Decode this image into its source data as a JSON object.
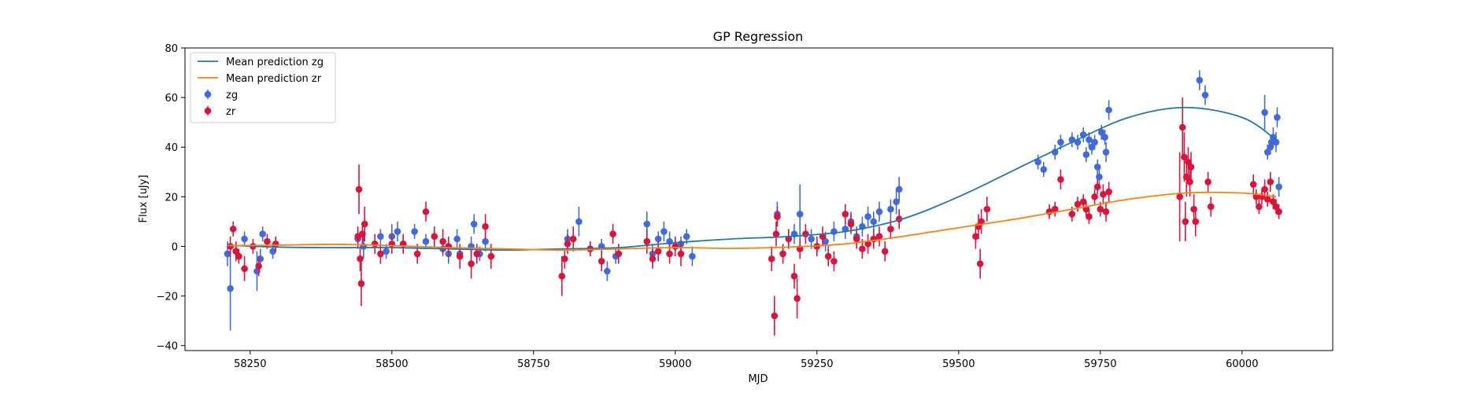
{
  "chart_data": {
    "type": "scatter",
    "title": "GP Regression",
    "xlabel": "MJD",
    "ylabel": "Flux [uJy]",
    "xlim": [
      58135,
      60160
    ],
    "ylim": [
      -42,
      80
    ],
    "xticks": [
      58250,
      58500,
      58750,
      59000,
      59250,
      59500,
      59750,
      60000
    ],
    "xtick_labels": [
      "58250",
      "58500",
      "58750",
      "59000",
      "59250",
      "59500",
      "59750",
      "60000"
    ],
    "yticks": [
      -40,
      -20,
      0,
      20,
      40,
      60,
      80
    ],
    "ytick_labels": [
      "−40",
      "−20",
      "0",
      "20",
      "40",
      "60",
      "80"
    ],
    "legend_position": "top-left",
    "grid": false,
    "lines": [
      {
        "name": "Mean prediction zg",
        "color": "#1f77b4",
        "x": [
          58210,
          58300,
          58400,
          58500,
          58600,
          58700,
          58800,
          58900,
          59000,
          59100,
          59200,
          59300,
          59400,
          59500,
          59600,
          59700,
          59800,
          59900,
          60000,
          60060
        ],
        "y": [
          0.5,
          -0.3,
          -0.5,
          -0.5,
          -1.0,
          -1.5,
          -1.0,
          -0.5,
          1.5,
          3.0,
          4.0,
          6.0,
          11.0,
          20.0,
          31.0,
          42.0,
          52.0,
          56.0,
          52.0,
          43.0
        ]
      },
      {
        "name": "Mean prediction zr",
        "color": "#ff7f0e",
        "x": [
          58210,
          58300,
          58400,
          58500,
          58600,
          58700,
          58800,
          58900,
          59000,
          59100,
          59200,
          59300,
          59400,
          59500,
          59600,
          59700,
          59800,
          59900,
          60000,
          60060
        ],
        "y": [
          0.3,
          0.5,
          0.8,
          0.3,
          -0.5,
          -1.0,
          -1.5,
          -1.0,
          -0.5,
          -0.8,
          -0.3,
          1.0,
          4.0,
          7.5,
          11.0,
          15.0,
          19.0,
          21.5,
          21.5,
          20.0
        ]
      }
    ],
    "series": [
      {
        "name": "zg",
        "color": "#4169e1",
        "points": [
          [
            58210,
            -3,
            5
          ],
          [
            58215,
            -17,
            17
          ],
          [
            58225,
            -2,
            3
          ],
          [
            58240,
            3,
            3
          ],
          [
            58262,
            -10,
            8
          ],
          [
            58268,
            -5,
            4
          ],
          [
            58272,
            5,
            3
          ],
          [
            58290,
            -2,
            3
          ],
          [
            58440,
            3,
            4
          ],
          [
            58450,
            0,
            5
          ],
          [
            58480,
            4,
            3
          ],
          [
            58490,
            -2,
            3
          ],
          [
            58500,
            4,
            5
          ],
          [
            58510,
            6,
            4
          ],
          [
            58520,
            1,
            3
          ],
          [
            58540,
            6,
            3
          ],
          [
            58560,
            2,
            3
          ],
          [
            58590,
            -1,
            3
          ],
          [
            58600,
            -3,
            4
          ],
          [
            58615,
            3,
            4
          ],
          [
            58620,
            -3,
            3
          ],
          [
            58640,
            0,
            4
          ],
          [
            58645,
            9,
            4
          ],
          [
            58655,
            -3,
            3
          ],
          [
            58665,
            2,
            4
          ],
          [
            58810,
            3,
            4
          ],
          [
            58830,
            10,
            6
          ],
          [
            58850,
            -1,
            3
          ],
          [
            58870,
            0,
            3
          ],
          [
            58880,
            -10,
            4
          ],
          [
            58895,
            -4,
            3
          ],
          [
            58950,
            9,
            5
          ],
          [
            58960,
            -3,
            4
          ],
          [
            58970,
            3,
            3
          ],
          [
            58980,
            6,
            4
          ],
          [
            58990,
            2,
            4
          ],
          [
            59010,
            1,
            3
          ],
          [
            59020,
            4,
            3
          ],
          [
            59030,
            -4,
            4
          ],
          [
            59180,
            13,
            5
          ],
          [
            59210,
            5,
            4
          ],
          [
            59220,
            13,
            12
          ],
          [
            59240,
            3,
            4
          ],
          [
            59265,
            2,
            4
          ],
          [
            59280,
            6,
            4
          ],
          [
            59300,
            7,
            4
          ],
          [
            59310,
            10,
            4
          ],
          [
            59320,
            4,
            4
          ],
          [
            59330,
            8,
            4
          ],
          [
            59340,
            12,
            4
          ],
          [
            59350,
            10,
            4
          ],
          [
            59360,
            14,
            4
          ],
          [
            59380,
            15,
            4
          ],
          [
            59390,
            18,
            5
          ],
          [
            59395,
            23,
            5
          ],
          [
            59640,
            34,
            3
          ],
          [
            59650,
            31,
            3
          ],
          [
            59670,
            38,
            3
          ],
          [
            59680,
            42,
            3
          ],
          [
            59700,
            43,
            3
          ],
          [
            59710,
            42,
            3
          ],
          [
            59720,
            45,
            3
          ],
          [
            59725,
            37,
            3
          ],
          [
            59730,
            43,
            3
          ],
          [
            59735,
            40,
            3
          ],
          [
            59740,
            42,
            3
          ],
          [
            59745,
            32,
            3
          ],
          [
            59748,
            28,
            3
          ],
          [
            59752,
            46,
            3
          ],
          [
            59758,
            44,
            3
          ],
          [
            59760,
            38,
            4
          ],
          [
            59765,
            55,
            4
          ],
          [
            59925,
            67,
            4
          ],
          [
            59935,
            61,
            4
          ],
          [
            60040,
            54,
            7
          ],
          [
            60045,
            38,
            3
          ],
          [
            60050,
            40,
            3
          ],
          [
            60052,
            42,
            3
          ],
          [
            60055,
            44,
            4
          ],
          [
            60060,
            42,
            4
          ],
          [
            60062,
            52,
            4
          ],
          [
            60065,
            24,
            4
          ]
        ]
      },
      {
        "name": "zr",
        "color": "#dc143c",
        "points": [
          [
            58215,
            0,
            4
          ],
          [
            58220,
            7,
            3
          ],
          [
            58225,
            -2,
            4
          ],
          [
            58230,
            -4,
            3
          ],
          [
            58240,
            -9,
            5
          ],
          [
            58255,
            0,
            3
          ],
          [
            58265,
            -8,
            4
          ],
          [
            58280,
            2,
            3
          ],
          [
            58295,
            1,
            3
          ],
          [
            58440,
            4,
            4
          ],
          [
            58442,
            23,
            10
          ],
          [
            58444,
            -5,
            5
          ],
          [
            58446,
            -15,
            9
          ],
          [
            58448,
            5,
            4
          ],
          [
            58452,
            9,
            7
          ],
          [
            58470,
            1,
            4
          ],
          [
            58480,
            -3,
            4
          ],
          [
            58500,
            1,
            4
          ],
          [
            58520,
            1,
            4
          ],
          [
            58545,
            -3,
            4
          ],
          [
            58560,
            14,
            4
          ],
          [
            58575,
            4,
            4
          ],
          [
            58590,
            2,
            5
          ],
          [
            58600,
            0,
            4
          ],
          [
            58620,
            -4,
            5
          ],
          [
            58640,
            -7,
            6
          ],
          [
            58650,
            -3,
            4
          ],
          [
            58665,
            8,
            5
          ],
          [
            58675,
            -4,
            5
          ],
          [
            58800,
            -12,
            8
          ],
          [
            58805,
            -5,
            4
          ],
          [
            58810,
            1,
            4
          ],
          [
            58820,
            3,
            5
          ],
          [
            58850,
            -1,
            3
          ],
          [
            58870,
            -6,
            4
          ],
          [
            58890,
            5,
            4
          ],
          [
            58900,
            -3,
            4
          ],
          [
            58950,
            2,
            5
          ],
          [
            58960,
            -5,
            4
          ],
          [
            58970,
            -2,
            4
          ],
          [
            58990,
            -3,
            4
          ],
          [
            59000,
            0,
            4
          ],
          [
            59010,
            -3,
            5
          ],
          [
            59170,
            -5,
            5
          ],
          [
            59175,
            -28,
            8
          ],
          [
            59178,
            5,
            5
          ],
          [
            59180,
            12,
            4
          ],
          [
            59190,
            -3,
            4
          ],
          [
            59200,
            3,
            4
          ],
          [
            59210,
            -12,
            5
          ],
          [
            59215,
            -21,
            8
          ],
          [
            59220,
            -1,
            4
          ],
          [
            59230,
            5,
            4
          ],
          [
            59250,
            0,
            4
          ],
          [
            59260,
            4,
            4
          ],
          [
            59270,
            -4,
            4
          ],
          [
            59280,
            -6,
            4
          ],
          [
            59300,
            13,
            4
          ],
          [
            59310,
            9,
            4
          ],
          [
            59320,
            3,
            4
          ],
          [
            59330,
            -1,
            4
          ],
          [
            59340,
            1,
            4
          ],
          [
            59350,
            3,
            4
          ],
          [
            59360,
            4,
            4
          ],
          [
            59370,
            -2,
            4
          ],
          [
            59380,
            7,
            4
          ],
          [
            59395,
            11,
            4
          ],
          [
            59530,
            4,
            5
          ],
          [
            59535,
            8,
            5
          ],
          [
            59538,
            -7,
            6
          ],
          [
            59540,
            10,
            5
          ],
          [
            59550,
            15,
            5
          ],
          [
            59660,
            14,
            3
          ],
          [
            59670,
            15,
            3
          ],
          [
            59680,
            27,
            4
          ],
          [
            59700,
            13,
            3
          ],
          [
            59710,
            17,
            3
          ],
          [
            59720,
            18,
            3
          ],
          [
            59725,
            15,
            3
          ],
          [
            59730,
            12,
            3
          ],
          [
            59740,
            20,
            3
          ],
          [
            59745,
            24,
            3
          ],
          [
            59750,
            15,
            3
          ],
          [
            59755,
            21,
            4
          ],
          [
            59760,
            14,
            4
          ],
          [
            59765,
            22,
            4
          ],
          [
            59890,
            20,
            18
          ],
          [
            59895,
            48,
            12
          ],
          [
            59898,
            36,
            10
          ],
          [
            59900,
            10,
            8
          ],
          [
            59902,
            28,
            8
          ],
          [
            59905,
            34,
            6
          ],
          [
            59908,
            26,
            6
          ],
          [
            59910,
            32,
            6
          ],
          [
            59915,
            15,
            6
          ],
          [
            59918,
            10,
            6
          ],
          [
            59940,
            26,
            4
          ],
          [
            59945,
            16,
            4
          ],
          [
            60020,
            25,
            4
          ],
          [
            60025,
            20,
            3
          ],
          [
            60030,
            16,
            3
          ],
          [
            60035,
            20,
            3
          ],
          [
            60040,
            23,
            4
          ],
          [
            60045,
            19,
            3
          ],
          [
            60050,
            26,
            4
          ],
          [
            60055,
            18,
            3
          ],
          [
            60060,
            16,
            3
          ],
          [
            60065,
            14,
            3
          ]
        ]
      }
    ]
  }
}
